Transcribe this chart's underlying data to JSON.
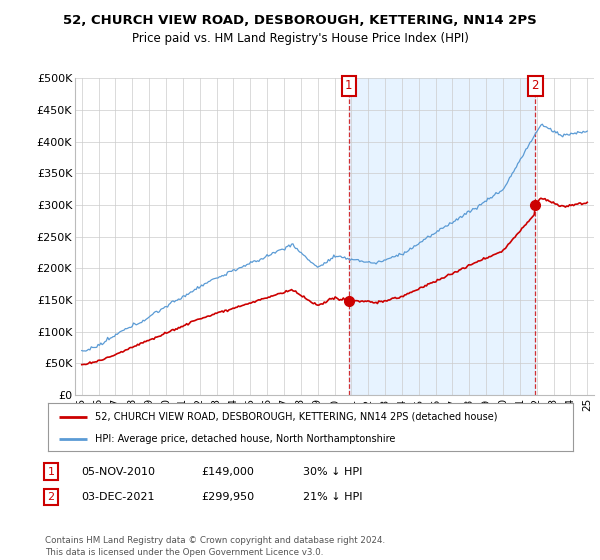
{
  "title_line1": "52, CHURCH VIEW ROAD, DESBOROUGH, KETTERING, NN14 2PS",
  "title_line2": "Price paid vs. HM Land Registry's House Price Index (HPI)",
  "ylim": [
    0,
    500000
  ],
  "yticks": [
    0,
    50000,
    100000,
    150000,
    200000,
    250000,
    300000,
    350000,
    400000,
    450000,
    500000
  ],
  "ytick_labels": [
    "£0",
    "£50K",
    "£100K",
    "£150K",
    "£200K",
    "£250K",
    "£300K",
    "£350K",
    "£400K",
    "£450K",
    "£500K"
  ],
  "sale1_date_num": 2010.85,
  "sale1_price": 149000,
  "sale2_date_num": 2021.92,
  "sale2_price": 299950,
  "hpi_color": "#5b9bd5",
  "hpi_fill_color": "#ddeeff",
  "price_color": "#cc0000",
  "annotation_box_color": "#cc0000",
  "legend_label_price": "52, CHURCH VIEW ROAD, DESBOROUGH, KETTERING, NN14 2PS (detached house)",
  "legend_label_hpi": "HPI: Average price, detached house, North Northamptonshire",
  "table_row1": [
    "1",
    "05-NOV-2010",
    "£149,000",
    "30% ↓ HPI"
  ],
  "table_row2": [
    "2",
    "03-DEC-2021",
    "£299,950",
    "21% ↓ HPI"
  ],
  "footnote": "Contains HM Land Registry data © Crown copyright and database right 2024.\nThis data is licensed under the Open Government Licence v3.0.",
  "background_color": "#ffffff",
  "grid_color": "#cccccc"
}
